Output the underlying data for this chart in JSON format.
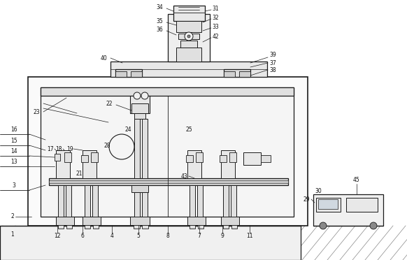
{
  "bg": "#ffffff",
  "lc": "#1a1a1a",
  "fc_light": "#f8f8f8",
  "fc_gray": "#e8e8e8",
  "fc_mid": "#d0d0d0"
}
